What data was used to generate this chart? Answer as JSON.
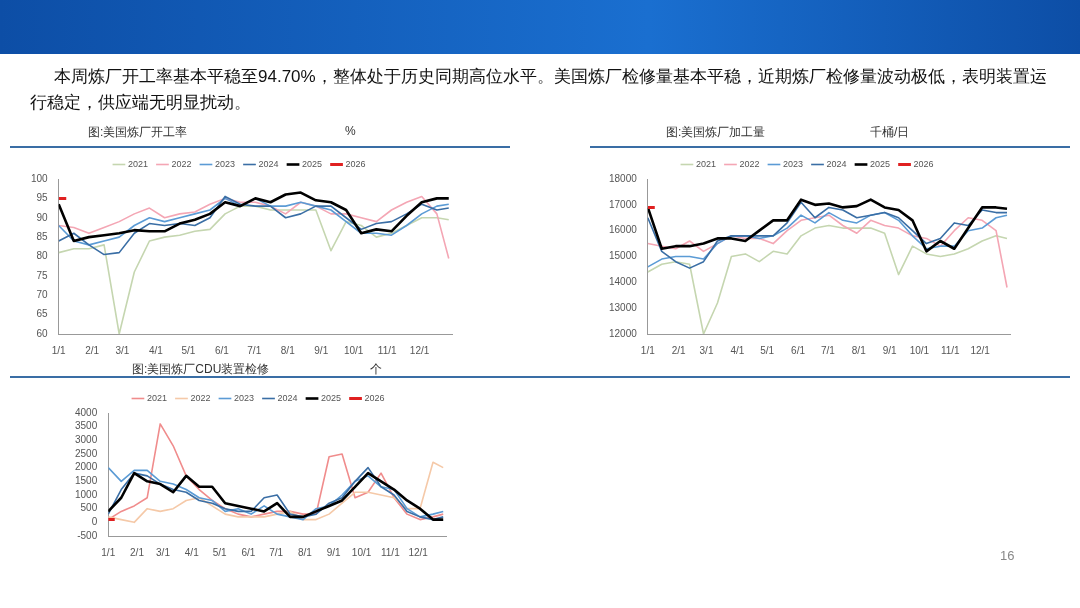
{
  "chart_data": [
    {
      "type": "line",
      "title": "图:美国炼厂开工率",
      "ylabel": "%",
      "annotations": [
        "本周炼厂开工率基本平稳至94.70%，整体处于历史同期高位水平。美国炼厂检修量基本平稳，近期炼厂检修量波动极低，表明装置运行稳定，供应端无明显扰动。"
      ],
      "x": [
        "--01-01",
        "--01-15",
        "--01-29",
        "--02-12",
        "--02-26",
        "--03-12",
        "--03-26",
        "--04-09",
        "--04-23",
        "--05-07",
        "--05-21",
        "--06-04",
        "--06-18",
        "--07-02",
        "--07-16",
        "--07-30",
        "--08-13",
        "--08-27",
        "--09-10",
        "--09-24",
        "--10-08",
        "--10-22",
        "--11-05",
        "--11-19",
        "--12-03",
        "--12-17",
        "--12-28"
      ],
      "series": [
        {
          "name": "2021",
          "color": "#c5d6b0",
          "values": [
            81,
            82,
            82,
            83,
            60,
            76,
            84,
            85,
            85.5,
            86.5,
            87,
            91,
            93,
            93,
            92,
            92,
            92,
            92,
            81.5,
            89,
            88,
            85,
            86,
            88,
            90,
            90,
            89.5
          ]
        },
        {
          "name": "2022",
          "color": "#f4a6b4",
          "values": [
            88,
            87.5,
            86,
            87.5,
            89,
            91,
            92.5,
            90,
            91,
            91.5,
            93.5,
            95,
            94,
            94,
            93,
            91,
            94,
            93,
            91,
            91,
            90,
            89,
            92,
            94,
            95.5,
            91,
            79.5
          ]
        },
        {
          "name": "2023",
          "color": "#5b9bd5",
          "values": [
            88,
            84,
            83,
            84,
            85,
            88,
            90,
            89,
            90,
            91,
            92,
            95,
            93,
            95,
            93,
            93,
            94,
            93,
            92,
            89,
            86,
            86,
            85.5,
            88,
            91,
            93,
            93.5
          ]
        },
        {
          "name": "2024",
          "color": "#3a6ea5",
          "values": [
            84,
            86,
            83,
            80.5,
            81,
            86,
            88.5,
            88,
            88.5,
            88,
            90,
            95.5,
            93.5,
            93,
            93,
            90,
            91,
            93,
            93,
            90,
            87,
            88.5,
            89,
            91,
            93.5,
            92,
            92.5
          ]
        },
        {
          "name": "2025",
          "color": "#000000",
          "values": [
            93.5,
            84,
            85,
            85.5,
            86,
            86.8,
            86.5,
            86.5,
            88.5,
            89.5,
            91,
            94,
            93,
            95,
            94,
            96,
            96.5,
            94.5,
            94,
            92,
            86,
            87,
            86.5,
            90.5,
            94,
            95,
            95
          ]
        },
        {
          "name": "2026",
          "color": "#e02020",
          "x": [
            "--01-01",
            "--01-08"
          ],
          "values": [
            95,
            95
          ]
        }
      ],
      "xlim": [
        "--01-01",
        "--12-31"
      ],
      "xticks": [
        {
          "value": "--01-01",
          "label": "1/1"
        },
        {
          "value": "--02-01",
          "label": "2/1"
        },
        {
          "value": "--03-01",
          "label": "3/1"
        },
        {
          "value": "--04-01",
          "label": "4/1"
        },
        {
          "value": "--05-01",
          "label": "5/1"
        },
        {
          "value": "--06-01",
          "label": "6/1"
        },
        {
          "value": "--07-01",
          "label": "7/1"
        },
        {
          "value": "--08-01",
          "label": "8/1"
        },
        {
          "value": "--09-01",
          "label": "9/1"
        },
        {
          "value": "--10-01",
          "label": "10/1"
        },
        {
          "value": "--11-01",
          "label": "11/1"
        },
        {
          "value": "--12-01",
          "label": "12/1"
        }
      ],
      "ylim": [
        60,
        100
      ],
      "yticks": [
        60,
        65,
        70,
        75,
        80,
        85,
        90,
        95,
        100
      ],
      "grid": false,
      "legend": "top",
      "marker": "none",
      "line_style": "solid"
    },
    {
      "type": "line",
      "title": "图:美国炼厂加工量",
      "ylabel": "千桶/日",
      "x": [
        "--01-01",
        "--01-15",
        "--01-29",
        "--02-12",
        "--02-26",
        "--03-12",
        "--03-26",
        "--04-09",
        "--04-23",
        "--05-07",
        "--05-21",
        "--06-04",
        "--06-18",
        "--07-02",
        "--07-16",
        "--07-30",
        "--08-13",
        "--08-27",
        "--09-10",
        "--09-24",
        "--10-08",
        "--10-22",
        "--11-05",
        "--11-19",
        "--12-03",
        "--12-17",
        "--12-28"
      ],
      "series": [
        {
          "name": "2021",
          "color": "#c5d6b0",
          "values": [
            14400,
            14700,
            14800,
            14700,
            12000,
            13200,
            15000,
            15100,
            14800,
            15200,
            15100,
            15800,
            16100,
            16200,
            16100,
            16100,
            16100,
            15900,
            14300,
            15400,
            15100,
            15000,
            15100,
            15300,
            15600,
            15800,
            15700
          ]
        },
        {
          "name": "2022",
          "color": "#f4a6b4",
          "values": [
            15500,
            15400,
            15300,
            15600,
            15200,
            15500,
            15800,
            15700,
            15700,
            15500,
            16000,
            16400,
            16500,
            16600,
            16200,
            15900,
            16400,
            16200,
            16100,
            15800,
            15700,
            15400,
            16000,
            16500,
            16400,
            16000,
            13800
          ]
        },
        {
          "name": "2023",
          "color": "#5b9bd5",
          "values": [
            14600,
            14900,
            15000,
            15000,
            14900,
            15500,
            15800,
            15800,
            15700,
            15800,
            16100,
            16600,
            16300,
            16700,
            16400,
            16300,
            16600,
            16700,
            16400,
            15800,
            15300,
            15400,
            15400,
            16000,
            16100,
            16500,
            16600
          ]
        },
        {
          "name": "2024",
          "color": "#3a6ea5",
          "values": [
            16500,
            15200,
            14800,
            14550,
            14800,
            15600,
            15800,
            15800,
            15800,
            15800,
            16300,
            17100,
            16500,
            16900,
            16800,
            16500,
            16600,
            16700,
            16500,
            16000,
            15500,
            15700,
            16300,
            16200,
            16800,
            16700,
            16700
          ]
        },
        {
          "name": "2025",
          "color": "#000000",
          "values": [
            16900,
            15300,
            15400,
            15400,
            15500,
            15700,
            15700,
            15600,
            16000,
            16400,
            16400,
            17200,
            17000,
            17050,
            16900,
            16950,
            17200,
            16900,
            16800,
            16400,
            15200,
            15600,
            15300,
            16100,
            16900,
            16900,
            16850
          ]
        },
        {
          "name": "2026",
          "color": "#e02020",
          "x": [
            "--01-01",
            "--01-08"
          ],
          "values": [
            16900,
            16900
          ]
        }
      ],
      "xlim": [
        "--01-01",
        "--12-31"
      ],
      "xticks": [
        {
          "value": "--01-01",
          "label": "1/1"
        },
        {
          "value": "--02-01",
          "label": "2/1"
        },
        {
          "value": "--03-01",
          "label": "3/1"
        },
        {
          "value": "--04-01",
          "label": "4/1"
        },
        {
          "value": "--05-01",
          "label": "5/1"
        },
        {
          "value": "--06-01",
          "label": "6/1"
        },
        {
          "value": "--07-01",
          "label": "7/1"
        },
        {
          "value": "--08-01",
          "label": "8/1"
        },
        {
          "value": "--09-01",
          "label": "9/1"
        },
        {
          "value": "--10-01",
          "label": "10/1"
        },
        {
          "value": "--11-01",
          "label": "11/1"
        },
        {
          "value": "--12-01",
          "label": "12/1"
        }
      ],
      "ylim": [
        12000,
        18000
      ],
      "yticks": [
        12000,
        13000,
        14000,
        15000,
        16000,
        17000,
        18000
      ],
      "grid": false,
      "legend": "top",
      "marker": "none",
      "line_style": "solid"
    },
    {
      "type": "line",
      "title": "图:美国炼厂CDU装置检修",
      "ylabel": "个",
      "annotations": [
        "16"
      ],
      "x": [
        "--01-01",
        "--01-15",
        "--01-29",
        "--02-12",
        "--02-26",
        "--03-12",
        "--03-26",
        "--04-09",
        "--04-23",
        "--05-07",
        "--05-21",
        "--06-04",
        "--06-18",
        "--07-02",
        "--07-16",
        "--07-30",
        "--08-13",
        "--08-27",
        "--09-10",
        "--09-24",
        "--10-08",
        "--10-22",
        "--11-05",
        "--11-19",
        "--12-03",
        "--12-17",
        "--12-28"
      ],
      "series": [
        {
          "name": "2021",
          "color": "#f08c8c",
          "values": [
            100,
            400,
            600,
            900,
            3600,
            2800,
            1700,
            1200,
            800,
            500,
            300,
            200,
            300,
            400,
            400,
            300,
            300,
            2400,
            2500,
            900,
            1100,
            1800,
            900,
            300,
            100,
            200,
            300
          ]
        },
        {
          "name": "2022",
          "color": "#f5c9a8",
          "values": [
            200,
            100,
            0,
            500,
            400,
            500,
            800,
            900,
            600,
            300,
            200,
            200,
            200,
            300,
            400,
            100,
            100,
            300,
            700,
            1100,
            1100,
            1000,
            900,
            500,
            500,
            2200,
            2000
          ]
        },
        {
          "name": "2023",
          "color": "#5b9bd5",
          "values": [
            2000,
            1500,
            1900,
            1900,
            1500,
            1400,
            1200,
            900,
            800,
            400,
            500,
            300,
            600,
            300,
            200,
            100,
            500,
            600,
            1000,
            1500,
            1700,
            1300,
            1200,
            500,
            200,
            300,
            400
          ]
        },
        {
          "name": "2024",
          "color": "#3a6ea5",
          "values": [
            300,
            1200,
            1800,
            1700,
            1400,
            1200,
            1100,
            800,
            700,
            500,
            400,
            400,
            900,
            1000,
            300,
            200,
            300,
            700,
            900,
            1500,
            2000,
            1300,
            1000,
            400,
            200,
            100,
            200
          ]
        },
        {
          "name": "2025",
          "color": "#000000",
          "values": [
            400,
            900,
            1800,
            1500,
            1400,
            1100,
            1700,
            1300,
            1300,
            700,
            600,
            500,
            400,
            700,
            200,
            200,
            400,
            600,
            800,
            1300,
            1800,
            1500,
            1200,
            800,
            500,
            100,
            100
          ]
        },
        {
          "name": "2026",
          "color": "#e02020",
          "x": [
            "--01-01",
            "--01-08"
          ],
          "values": [
            100,
            100
          ]
        }
      ],
      "xlim": [
        "--01-01",
        "--12-31"
      ],
      "xticks": [
        {
          "value": "--01-01",
          "label": "1/1"
        },
        {
          "value": "--02-01",
          "label": "2/1"
        },
        {
          "value": "--03-01",
          "label": "3/1"
        },
        {
          "value": "--04-01",
          "label": "4/1"
        },
        {
          "value": "--05-01",
          "label": "5/1"
        },
        {
          "value": "--06-01",
          "label": "6/1"
        },
        {
          "value": "--07-01",
          "label": "7/1"
        },
        {
          "value": "--08-01",
          "label": "8/1"
        },
        {
          "value": "--09-01",
          "label": "9/1"
        },
        {
          "value": "--10-01",
          "label": "10/1"
        },
        {
          "value": "--11-01",
          "label": "11/1"
        },
        {
          "value": "--12-01",
          "label": "12/1"
        }
      ],
      "ylim": [
        -500,
        4000
      ],
      "yticks": [
        -500,
        0,
        500,
        1000,
        1500,
        2000,
        2500,
        3000,
        3500,
        4000
      ],
      "grid": false,
      "legend": "top",
      "marker": "none",
      "line_style": "solid"
    }
  ]
}
